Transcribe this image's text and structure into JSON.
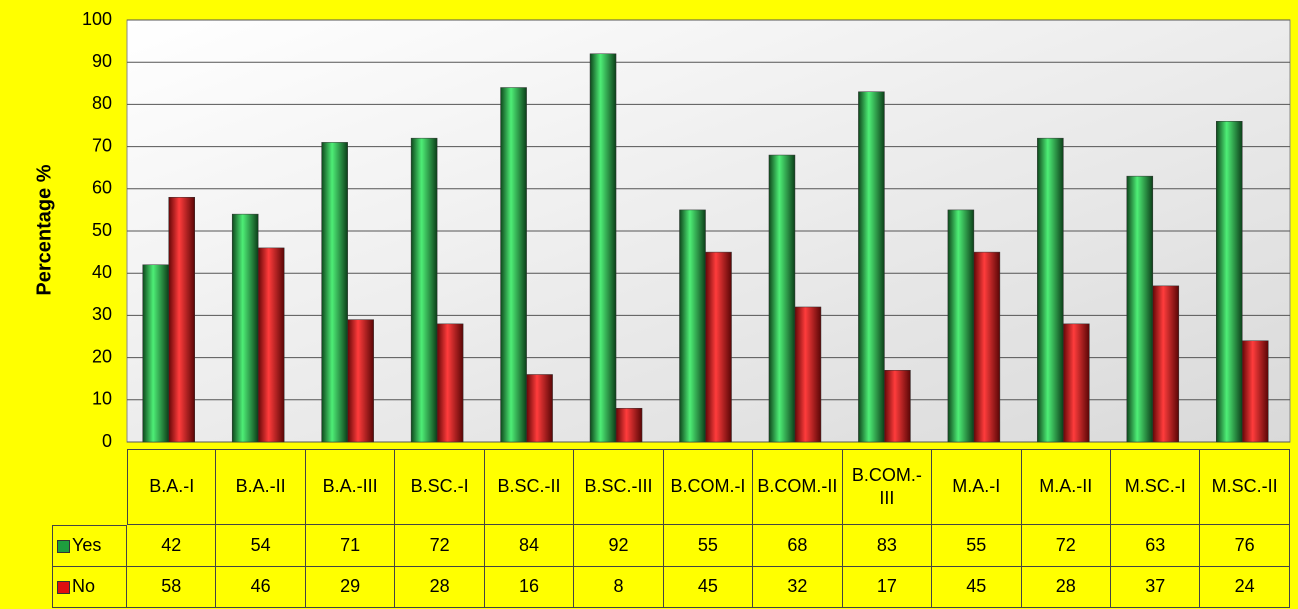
{
  "chart_data": {
    "type": "bar",
    "ylabel": "Percentage %",
    "categories": [
      "B.A.-I",
      "B.A.-II",
      "B.A.-III",
      "B.SC.-I",
      "B.SC.-II",
      "B.SC.-III",
      "B.COM.-I",
      "B.COM.-II",
      "B.COM.-III",
      "M.A.-I",
      "M.A.-II",
      "M.SC.-I",
      "M.SC.-II"
    ],
    "series": [
      {
        "name": "Yes",
        "color": "#1e9e3e",
        "values": [
          42,
          54,
          71,
          72,
          84,
          92,
          55,
          68,
          83,
          55,
          72,
          63,
          76
        ]
      },
      {
        "name": "No",
        "color": "#e01010",
        "values": [
          58,
          46,
          29,
          28,
          16,
          8,
          45,
          32,
          17,
          45,
          28,
          37,
          24
        ]
      }
    ],
    "ylim": [
      0,
      100
    ],
    "yticks": [
      0,
      10,
      20,
      30,
      40,
      50,
      60,
      70,
      80,
      90,
      100
    ],
    "grid": true,
    "data_table": true
  }
}
